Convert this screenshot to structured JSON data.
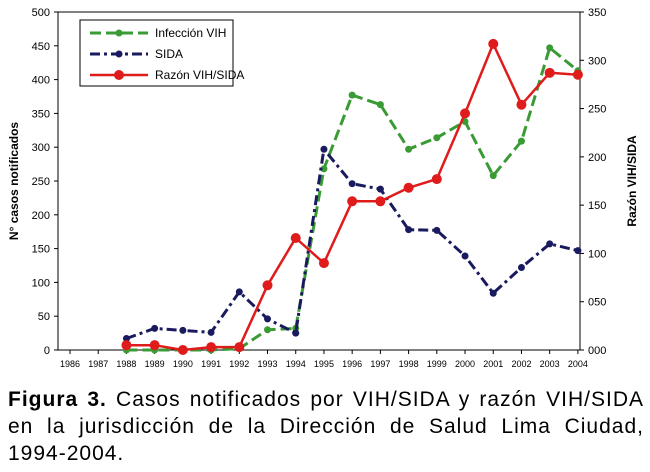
{
  "chart_data": {
    "type": "line",
    "years": [
      "1986",
      "1987",
      "1988",
      "1989",
      "1990",
      "1991",
      "1992",
      "1993",
      "1994",
      "1995",
      "1996",
      "1997",
      "1998",
      "1999",
      "2000",
      "2001",
      "2002",
      "2003",
      "2004"
    ],
    "y_left": {
      "label": "N° casos notificados",
      "min": 0,
      "max": 500,
      "ticks": [
        "0",
        "50",
        "100",
        "150",
        "200",
        "250",
        "300",
        "350",
        "400",
        "450",
        "500"
      ]
    },
    "y_right": {
      "label": "Razón VIH/SIDA",
      "min": 0,
      "max": 350,
      "ticks": [
        "000",
        "050",
        "100",
        "150",
        "200",
        "250",
        "300",
        "350"
      ]
    },
    "series": [
      {
        "name": "Infección VIH",
        "axis": "left",
        "color": "#3a9b35",
        "style": "dashed",
        "values": [
          null,
          null,
          0,
          0,
          0,
          0,
          2,
          30,
          32,
          268,
          377,
          363,
          297,
          314,
          338,
          258,
          309,
          447,
          413
        ]
      },
      {
        "name": "SIDA",
        "axis": "left",
        "color": "#1a1a5e",
        "style": "dashdot",
        "values": [
          null,
          null,
          17,
          32,
          29,
          26,
          86,
          46,
          25,
          297,
          246,
          238,
          178,
          177,
          139,
          84,
          122,
          157,
          147
        ]
      },
      {
        "name": "Razón VIH/SIDA",
        "axis": "right",
        "color": "#e01b1b",
        "style": "solid",
        "values": [
          null,
          null,
          5,
          5,
          0,
          3,
          3,
          67,
          116,
          90,
          154,
          154,
          168,
          177,
          245,
          317,
          254,
          287,
          285
        ]
      }
    ]
  },
  "caption": {
    "label": "Figura 3.",
    "text": " Casos notificados por VIH/SIDA y razón VIH/SIDA en la jurisdicción de la Dirección de Salud Lima Ciudad, 1994-2004."
  }
}
